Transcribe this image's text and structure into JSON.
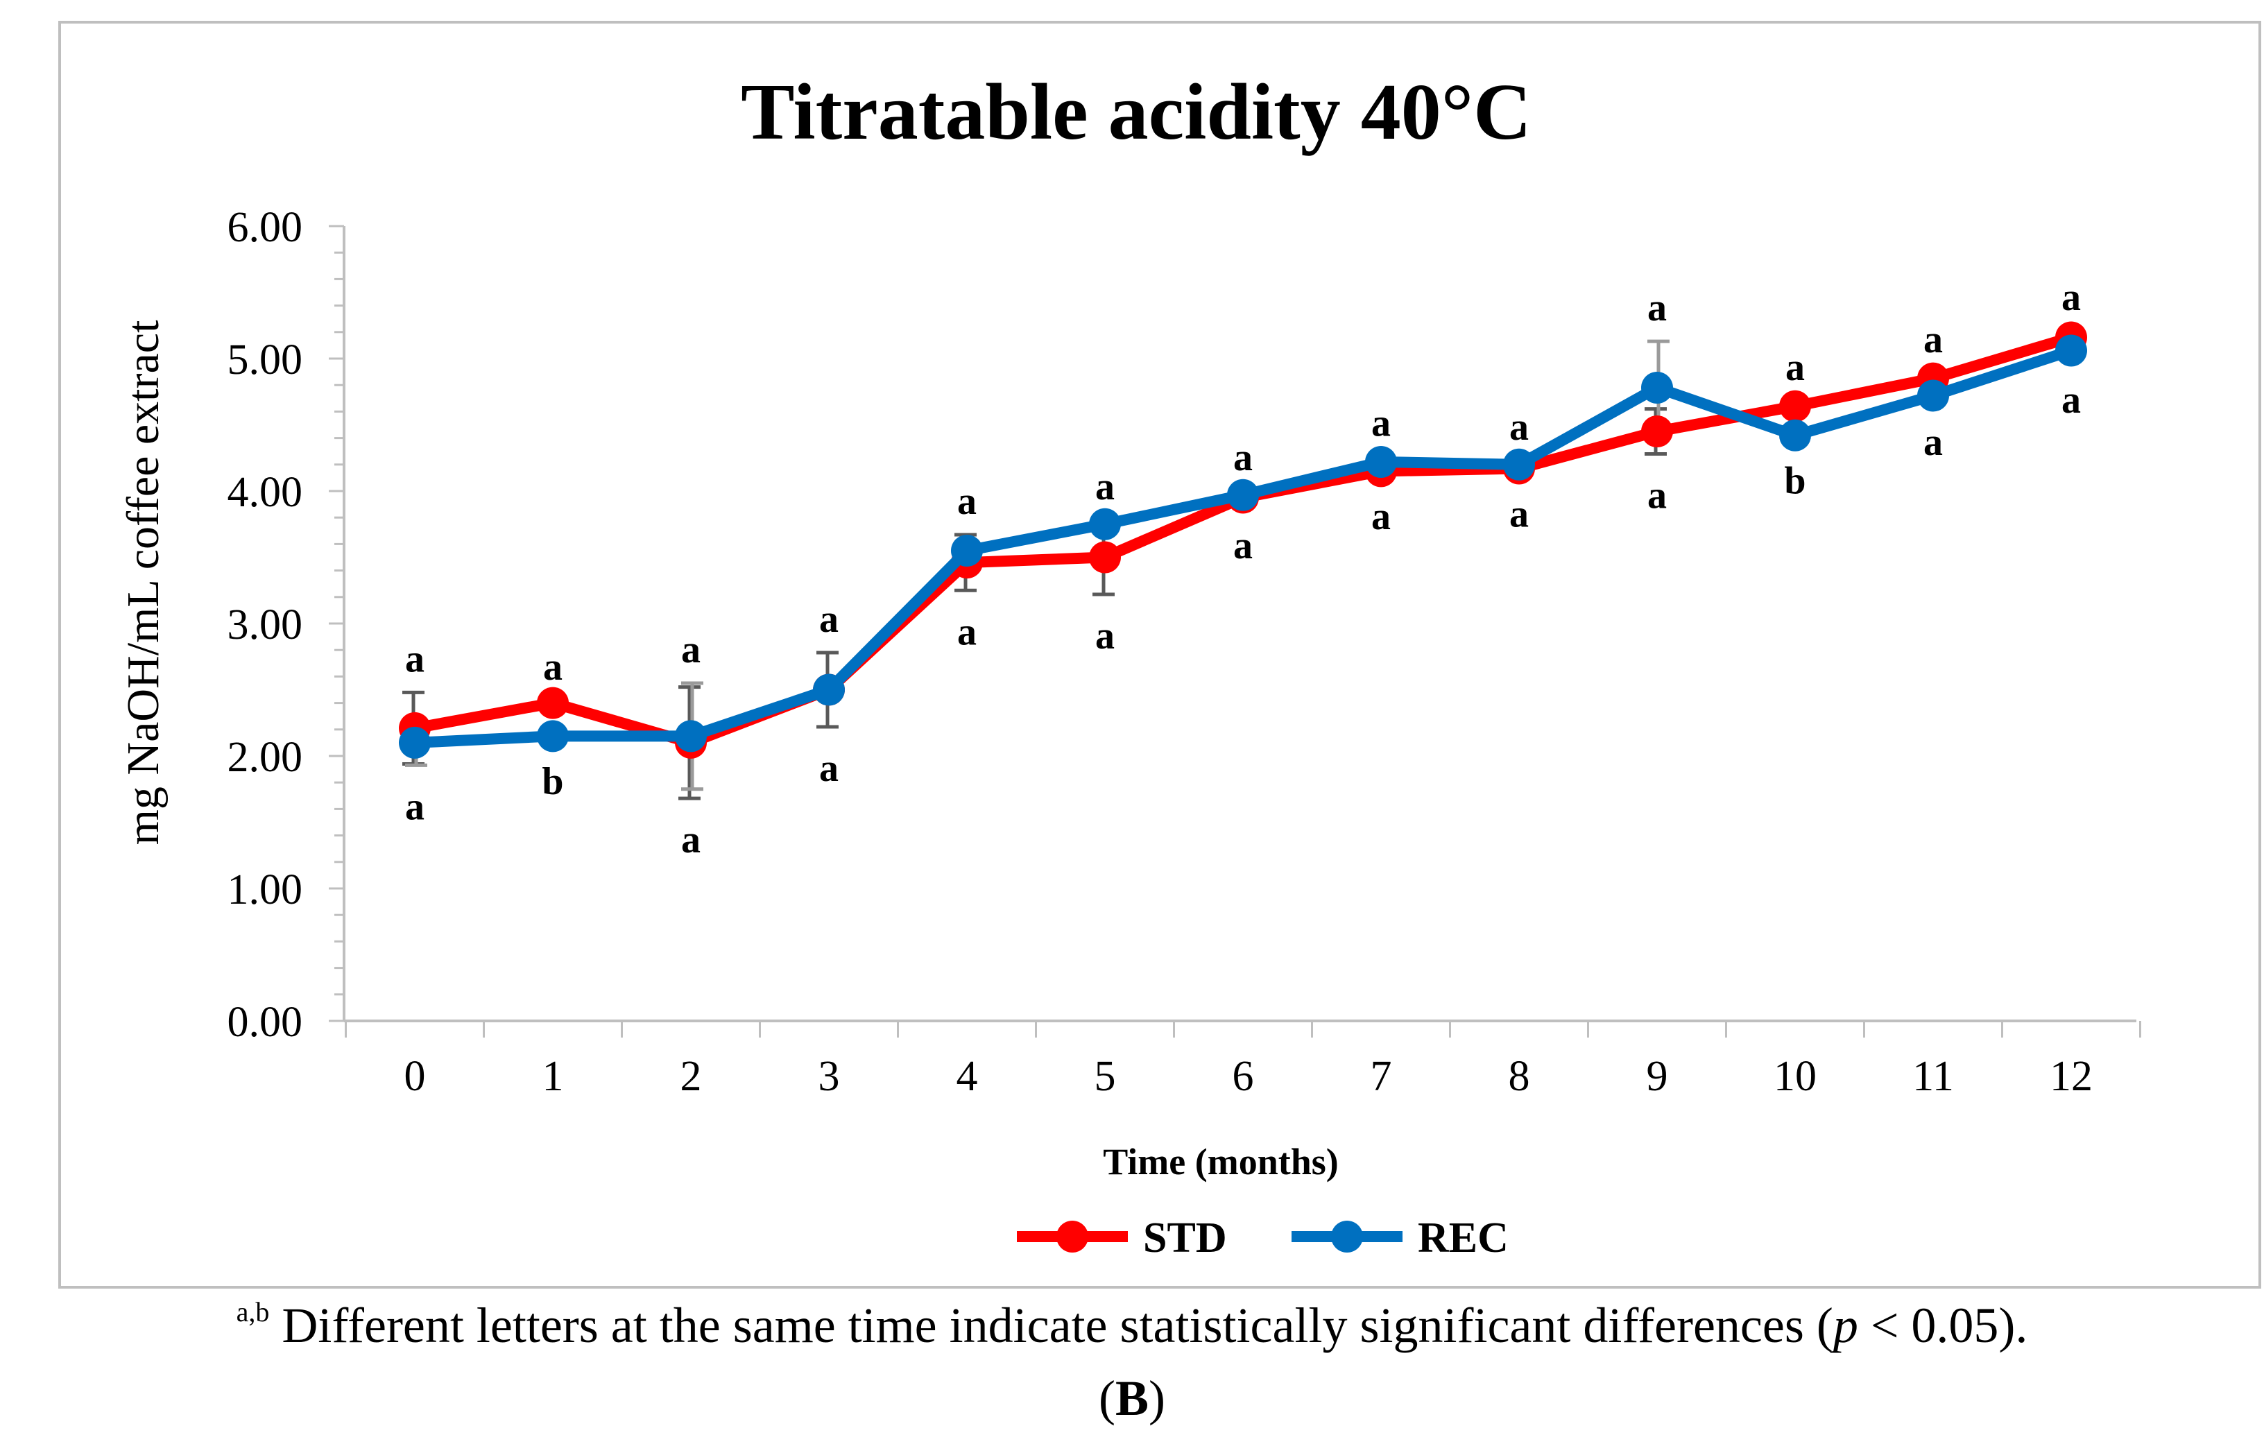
{
  "chart_data": {
    "type": "line",
    "title": "Titratable acidity 40°C",
    "xlabel": "Time (months)",
    "ylabel": "mg NaOH/mL coffee extract",
    "x": [
      0,
      1,
      2,
      3,
      4,
      5,
      6,
      7,
      8,
      9,
      10,
      11,
      12
    ],
    "x_tick_labels": [
      "0",
      "1",
      "2",
      "3",
      "4",
      "5",
      "6",
      "7",
      "8",
      "9",
      "10",
      "11",
      "12"
    ],
    "ylim": [
      0,
      6
    ],
    "y_tick_labels": [
      "0.00",
      "1.00",
      "2.00",
      "3.00",
      "4.00",
      "5.00",
      "6.00"
    ],
    "grid": false,
    "legend_position": "bottom",
    "series": [
      {
        "name": "STD",
        "color": "#ff0000",
        "values": [
          2.21,
          2.4,
          2.1,
          2.5,
          3.46,
          3.5,
          3.95,
          4.15,
          4.17,
          4.45,
          4.64,
          4.85,
          5.16
        ],
        "errors": [
          0.27,
          0.02,
          0.42,
          0.28,
          0.21,
          0.28,
          0.05,
          0.03,
          0.03,
          0.17,
          0.04,
          0.04,
          0.05
        ],
        "letters": [
          "a",
          "a",
          "a",
          "a",
          "a",
          "a",
          "a",
          "a",
          "a",
          "a",
          "a",
          "a",
          "a"
        ]
      },
      {
        "name": "REC",
        "color": "#0070c0",
        "values": [
          2.1,
          2.15,
          2.15,
          2.5,
          3.55,
          3.75,
          3.97,
          4.22,
          4.2,
          4.78,
          4.42,
          4.72,
          5.06
        ],
        "errors": [
          0.17,
          0.03,
          0.4,
          0.02,
          0.03,
          0.02,
          0.03,
          0.04,
          0.03,
          0.35,
          0.03,
          0.04,
          0.06
        ],
        "letters": [
          "a",
          "b",
          "a",
          "a",
          "a",
          "a",
          "a",
          "a",
          "a",
          "a",
          "b",
          "a",
          "a"
        ]
      }
    ]
  },
  "footnote": {
    "superscript": "a,b",
    "text_before": " Different letters at the same time indicate statistically significant differences (",
    "p_symbol": "p",
    "text_after": " < 0.05).",
    "panel_open": "(",
    "panel_letter": "B",
    "panel_close": ")"
  }
}
